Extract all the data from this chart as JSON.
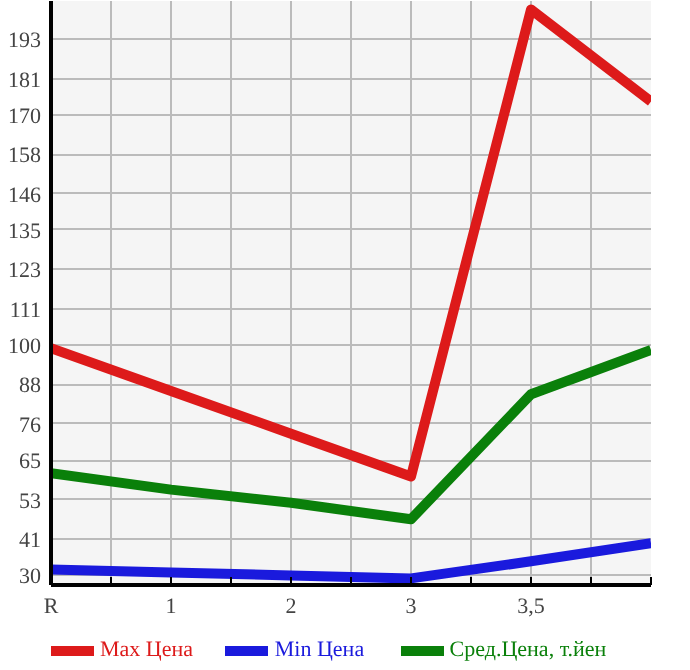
{
  "chart_data": {
    "type": "line",
    "categories": [
      "R",
      "1",
      "2",
      "3",
      "3,5",
      null
    ],
    "series": [
      {
        "name": "Max Цена",
        "color": "#dd1a1a",
        "values": [
          99,
          86,
          73,
          60,
          202,
          174
        ]
      },
      {
        "name": "Min Цена",
        "color": "#1a1add",
        "values": [
          31.7,
          30.8,
          29.9,
          29,
          34.2,
          39.7
        ]
      },
      {
        "name": "Сред.Цена, т.йен",
        "color": "#0a800a",
        "values": [
          61,
          56,
          52,
          47,
          85,
          98.5
        ]
      }
    ],
    "ylim": [
      27,
      204.6
    ],
    "yticks": [
      30,
      41,
      53,
      65,
      76,
      88,
      100,
      111,
      123,
      135,
      146,
      158,
      170,
      181,
      193
    ],
    "grid": true,
    "legend": "bottom",
    "marker": "none",
    "line_style": "solid"
  }
}
